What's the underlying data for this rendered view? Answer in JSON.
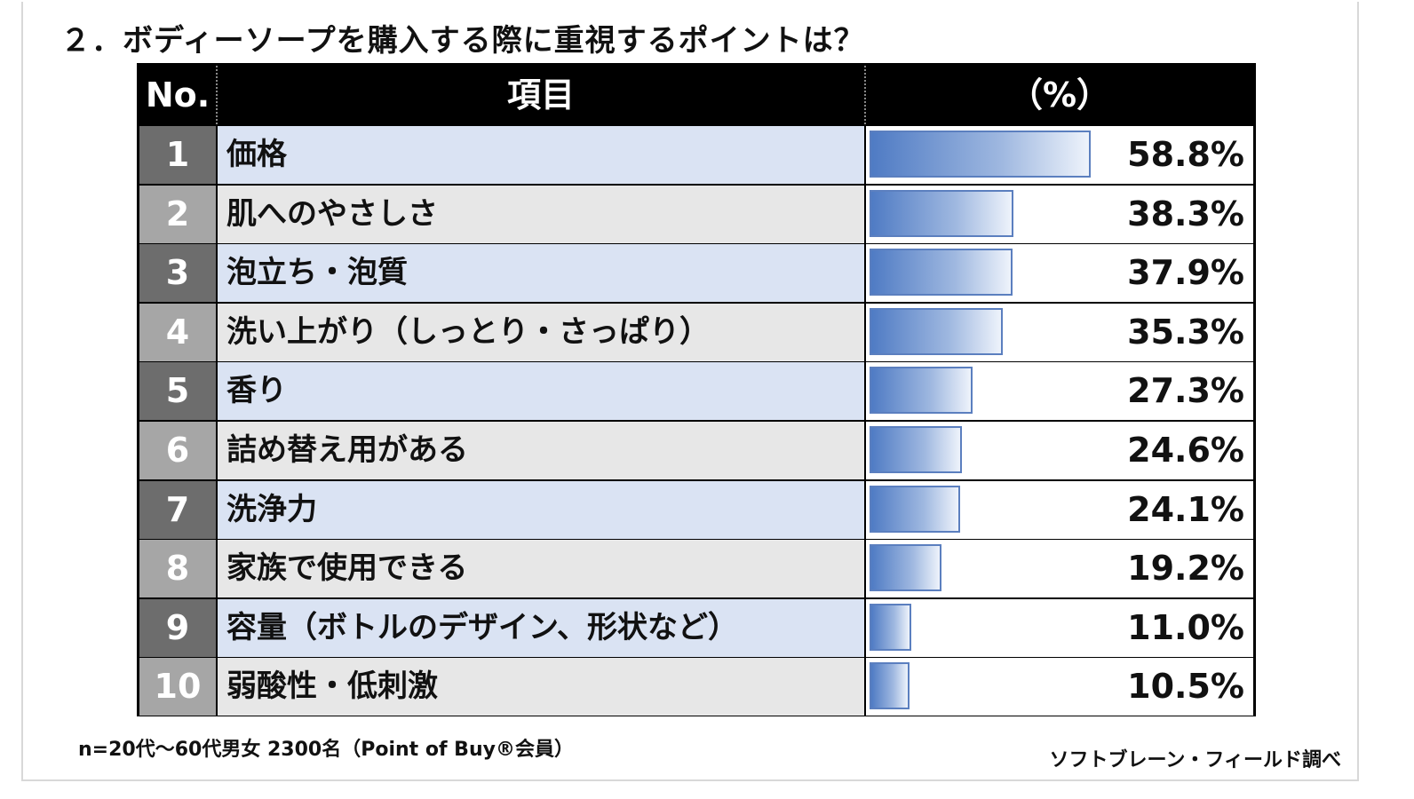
{
  "title": "２．ボディーソープを購入する際に重視するポイントは？",
  "table_header": {
    "no": "No.",
    "item": "項目",
    "pct": "（%）"
  },
  "colors": {
    "no_odd": "#6d6d6d",
    "no_even": "#a6a6a6",
    "item_odd": "#dae3f3",
    "item_even": "#e7e7e7",
    "bar": "#4f7bc4"
  },
  "chart_data": {
    "type": "bar",
    "title": "２．ボディーソープを購入する際に重視するポイントは？",
    "xlabel": "",
    "ylabel": "（%）",
    "categories": [
      "価格",
      "肌へのやさしさ",
      "泡立ち・泡質",
      "洗い上がり（しっとり・さっぱり）",
      "香り",
      "詰め替え用がある",
      "洗浄力",
      "家族で使用できる",
      "容量（ボトルのデザイン、形状など）",
      "弱酸性・低刺激"
    ],
    "ranks": [
      "1",
      "2",
      "3",
      "4",
      "5",
      "6",
      "7",
      "8",
      "9",
      "10"
    ],
    "values": [
      58.8,
      38.3,
      37.9,
      35.3,
      27.3,
      24.6,
      24.1,
      19.2,
      11.0,
      10.5
    ],
    "labels": [
      "58.8%",
      "38.3%",
      "37.9%",
      "35.3%",
      "27.3%",
      "24.6%",
      "24.1%",
      "19.2%",
      "11.0%",
      "10.5%"
    ],
    "ylim": [
      0,
      100
    ]
  },
  "footer": {
    "note": "n=20代～60代男女 2300名（Point of Buy®会員）",
    "source": "ソフトブレーン・フィールド調べ"
  }
}
